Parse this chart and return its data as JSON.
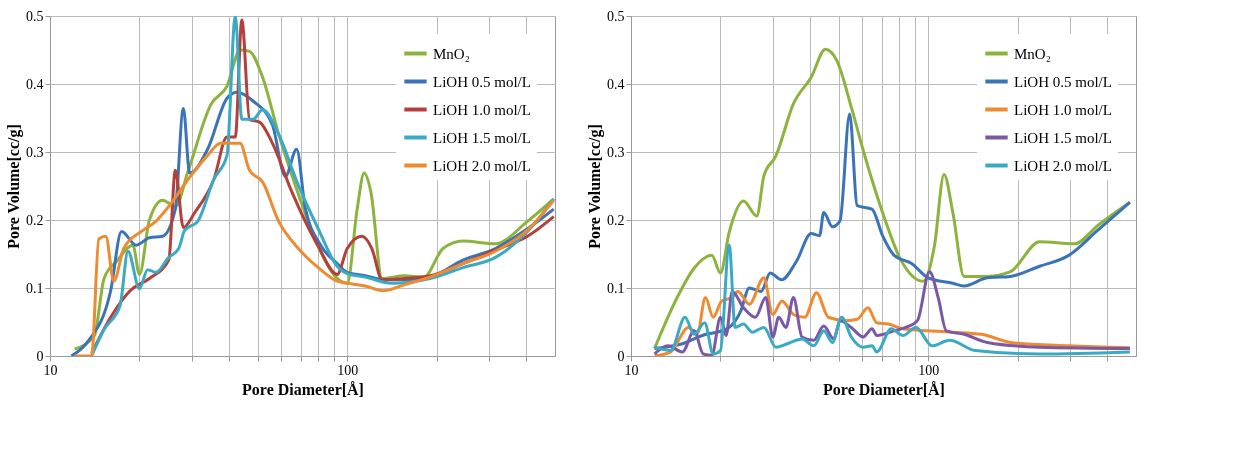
{
  "chart_data": [
    {
      "type": "line",
      "xlabel": "Pore Diameter[Å]",
      "ylabel": "Pore Volume[cc/g]",
      "log": "x",
      "grid": true,
      "legend": "top right",
      "xlim": [
        10,
        500
      ],
      "xticks": [
        10,
        {
          "value": 20,
          "label": null
        },
        {
          "value": 30,
          "label": null
        },
        {
          "value": 40,
          "label": null
        },
        {
          "value": 50,
          "label": null
        },
        {
          "value": 60,
          "label": null
        },
        {
          "value": 70,
          "label": null
        },
        {
          "value": 80,
          "label": null
        },
        {
          "value": 90,
          "label": null
        },
        100,
        {
          "value": 200,
          "label": null
        },
        {
          "value": 300,
          "label": null
        },
        {
          "value": 400,
          "label": null
        }
      ],
      "ylim": [
        0,
        0.5
      ],
      "yticks": [
        0,
        0.1,
        0.2,
        0.3,
        0.4,
        0.5
      ],
      "series": [
        {
          "name": "MnO₂",
          "color": "#8db33f",
          "x": [
            12.1,
            14.1,
            15.2,
            16.8,
            19.0,
            20.0,
            21.6,
            23.9,
            26.4,
            29.2,
            34.8,
            39.4,
            43.6,
            46.9,
            51.9,
            58.8,
            68.5,
            79.5,
            92.5,
            100,
            108,
            114,
            120,
            131,
            156,
            181,
            210,
            245,
            315,
            404,
            495
          ],
          "values": [
            0.01,
            0.03,
            0.114,
            0.14,
            0.163,
            0.12,
            0.2,
            0.229,
            0.22,
            0.273,
            0.37,
            0.397,
            0.45,
            0.448,
            0.41,
            0.326,
            0.238,
            0.163,
            0.114,
            0.107,
            0.216,
            0.269,
            0.242,
            0.114,
            0.118,
            0.116,
            0.158,
            0.169,
            0.165,
            0.198,
            0.231
          ]
        },
        {
          "name": "LiOH 0.5 mol/L",
          "color": "#3a73b8",
          "x": [
            11.8,
            13.4,
            16.0,
            17.4,
            19.5,
            21.6,
            23.9,
            26.4,
            28.1,
            29.5,
            33.9,
            39.4,
            42.5,
            48.2,
            56.0,
            61.9,
            67.6,
            72.1,
            81.4,
            92.5,
            100,
            115,
            134,
            156,
            190,
            245,
            315,
            404,
            495
          ],
          "values": [
            0,
            0.021,
            0.096,
            0.183,
            0.163,
            0.174,
            0.176,
            0.216,
            0.364,
            0.269,
            0.304,
            0.379,
            0.388,
            0.375,
            0.34,
            0.264,
            0.304,
            0.22,
            0.163,
            0.136,
            0.123,
            0.118,
            0.112,
            0.112,
            0.116,
            0.141,
            0.158,
            0.187,
            0.216
          ]
        },
        {
          "name": "LiOH 1.0 mol/L",
          "color": "#b5403a",
          "x": [
            13.8,
            16.0,
            18.6,
            21.6,
            25.1,
            26.4,
            28.1,
            30.7,
            35.6,
            39.4,
            42.0,
            44.2,
            46.9,
            50.7,
            56.0,
            65.0,
            79.5,
            92.5,
            100,
            112,
            121,
            131,
            156,
            190,
            245,
            315,
            404,
            495
          ],
          "values": [
            0.004,
            0.057,
            0.096,
            0.114,
            0.141,
            0.273,
            0.189,
            0.211,
            0.26,
            0.322,
            0.322,
            0.494,
            0.348,
            0.344,
            0.313,
            0.242,
            0.163,
            0.12,
            0.158,
            0.176,
            0.158,
            0.112,
            0.114,
            0.118,
            0.136,
            0.156,
            0.176,
            0.205
          ]
        },
        {
          "name": "LiOH 1.5 mol/L",
          "color": "#3aaac4",
          "x": [
            13.8,
            15.2,
            17.2,
            18.3,
            20.0,
            21.3,
            22.7,
            25.1,
            27.1,
            28.4,
            31.4,
            35.6,
            39.4,
            42.0,
            44.2,
            48.2,
            51.9,
            58.8,
            68.5,
            79.5,
            92.5,
            100,
            115,
            141,
            190,
            245,
            315,
            404,
            495
          ],
          "values": [
            0,
            0.039,
            0.074,
            0.154,
            0.099,
            0.127,
            0.123,
            0.145,
            0.158,
            0.185,
            0.198,
            0.26,
            0.295,
            0.499,
            0.348,
            0.348,
            0.362,
            0.326,
            0.251,
            0.189,
            0.132,
            0.121,
            0.116,
            0.107,
            0.114,
            0.13,
            0.145,
            0.183,
            0.231
          ]
        },
        {
          "name": "LiOH 2.0 mol/L",
          "color": "#ee8a30",
          "x": [
            12.1,
            13.8,
            14.6,
            15.4,
            16.4,
            17.7,
            20.6,
            22.7,
            25.1,
            29.2,
            33.9,
            37.5,
            43.6,
            46.9,
            51.9,
            58.8,
            68.5,
            81.4,
            92.5,
            100,
            115,
            132,
            156,
            190,
            245,
            315,
            404,
            495
          ],
          "values": [
            0,
            0,
            0.172,
            0.176,
            0.11,
            0.158,
            0.185,
            0.198,
            0.22,
            0.26,
            0.295,
            0.313,
            0.313,
            0.273,
            0.256,
            0.198,
            0.158,
            0.127,
            0.11,
            0.107,
            0.103,
            0.096,
            0.105,
            0.116,
            0.136,
            0.154,
            0.185,
            0.229
          ]
        }
      ]
    },
    {
      "type": "line",
      "xlabel": "Pore Diameter[Å]",
      "ylabel": "Pore Volume[cc/g]",
      "log": "x",
      "grid": true,
      "legend": "top right",
      "xlim": [
        10,
        500
      ],
      "xticks": [
        10,
        {
          "value": 20,
          "label": null
        },
        {
          "value": 30,
          "label": null
        },
        {
          "value": 40,
          "label": null
        },
        {
          "value": 50,
          "label": null
        },
        {
          "value": 60,
          "label": null
        },
        {
          "value": 70,
          "label": null
        },
        {
          "value": 80,
          "label": null
        },
        {
          "value": 90,
          "label": null
        },
        100,
        {
          "value": 200,
          "label": null
        },
        {
          "value": 300,
          "label": null
        },
        {
          "value": 400,
          "label": null
        }
      ],
      "ylim": [
        0,
        0.5
      ],
      "yticks": [
        0,
        0.1,
        0.2,
        0.3,
        0.4,
        0.5
      ],
      "series": [
        {
          "name": "MnO₂",
          "color": "#8db33f",
          "x": [
            12.0,
            14.3,
            16.3,
            18.7,
            20.0,
            21.4,
            23.9,
            26.5,
            28.0,
            30.7,
            35.2,
            40.4,
            45.1,
            49.3,
            55.1,
            61.3,
            70.2,
            80.3,
            96.2,
            105,
            113,
            121,
            132,
            158,
            189,
            237,
            311,
            372,
            477
          ],
          "values": [
            0.011,
            0.086,
            0.129,
            0.148,
            0.122,
            0.182,
            0.228,
            0.206,
            0.265,
            0.294,
            0.371,
            0.41,
            0.451,
            0.434,
            0.366,
            0.293,
            0.211,
            0.144,
            0.11,
            0.163,
            0.267,
            0.211,
            0.117,
            0.117,
            0.124,
            0.168,
            0.165,
            0.192,
            0.226
          ]
        },
        {
          "name": "LiOH 0.5 mol/L",
          "color": "#3a73b8",
          "x": [
            12.0,
            14.9,
            17.9,
            19.5,
            21.4,
            23.4,
            25.0,
            27.4,
            29.4,
            32.1,
            36.0,
            40.4,
            43.1,
            44.5,
            47.6,
            50.5,
            54.4,
            57.7,
            64.7,
            70.2,
            76.8,
            87.9,
            100,
            121,
            132,
            158,
            189,
            237,
            297,
            372,
            477
          ],
          "values": [
            0.011,
            0.018,
            0.032,
            0.035,
            0.042,
            0.066,
            0.1,
            0.095,
            0.122,
            0.112,
            0.139,
            0.18,
            0.177,
            0.211,
            0.19,
            0.199,
            0.356,
            0.221,
            0.216,
            0.177,
            0.148,
            0.136,
            0.115,
            0.107,
            0.103,
            0.115,
            0.117,
            0.132,
            0.148,
            0.185,
            0.226
          ]
        },
        {
          "name": "LiOH 1.0 mol/L",
          "color": "#ee8a30",
          "x": [
            12.0,
            13.6,
            15.6,
            16.7,
            17.8,
            18.9,
            20.2,
            21.9,
            22.9,
            25.0,
            28.0,
            30.0,
            32.2,
            35.2,
            38.4,
            42.1,
            46.1,
            52.9,
            57.7,
            62.7,
            67.1,
            73.4,
            82.2,
            100,
            121,
            151,
            189,
            297,
            477
          ],
          "values": [
            0,
            0.006,
            0.042,
            0.032,
            0.086,
            0.057,
            0.081,
            0.086,
            0.095,
            0.076,
            0.115,
            0.061,
            0.081,
            0.061,
            0.057,
            0.093,
            0.057,
            0.052,
            0.054,
            0.071,
            0.049,
            0.047,
            0.04,
            0.037,
            0.035,
            0.032,
            0.02,
            0.015,
            0.012
          ]
        },
        {
          "name": "LiOH 1.5 mol/L",
          "color": "#7b58a6",
          "x": [
            12.0,
            13.3,
            14.9,
            16.3,
            17.5,
            18.7,
            20.0,
            20.9,
            21.9,
            23.9,
            26.2,
            28.4,
            30.0,
            31.4,
            33.2,
            35.2,
            37.6,
            41.2,
            44.5,
            48.1,
            50.5,
            55.1,
            60.4,
            64.7,
            67.1,
            76.8,
            84.0,
            92.0,
            101,
            108,
            115,
            132,
            158,
            237,
            477
          ],
          "values": [
            0.003,
            0.015,
            0.006,
            0.037,
            0.003,
            0.001,
            0.057,
            0.03,
            0.095,
            0.071,
            0.057,
            0.086,
            0.028,
            0.057,
            0.042,
            0.086,
            0.028,
            0.023,
            0.044,
            0.025,
            0.052,
            0.042,
            0.028,
            0.04,
            0.03,
            0.037,
            0.042,
            0.052,
            0.124,
            0.086,
            0.037,
            0.032,
            0.02,
            0.013,
            0.011
          ]
        },
        {
          "name": "LiOH 2.0 mol/L",
          "color": "#3aaac4",
          "x": [
            12.0,
            13.6,
            15.2,
            16.3,
            17.7,
            18.9,
            20.0,
            21.4,
            22.4,
            23.9,
            25.6,
            28.0,
            30.7,
            33.6,
            37.6,
            41.2,
            44.5,
            47.6,
            51.1,
            55.1,
            60.4,
            64.7,
            67.1,
            75.1,
            82.2,
            90.9,
            103,
            118,
            144,
            237,
            477
          ],
          "values": [
            0.013,
            0.008,
            0.057,
            0.032,
            0.049,
            0.003,
            0.008,
            0.163,
            0.042,
            0.047,
            0.035,
            0.042,
            0.013,
            0.018,
            0.025,
            0.015,
            0.037,
            0.02,
            0.057,
            0.028,
            0.013,
            0.015,
            0.006,
            0.04,
            0.03,
            0.042,
            0.015,
            0.023,
            0.008,
            0.003,
            0.006
          ]
        }
      ]
    }
  ]
}
